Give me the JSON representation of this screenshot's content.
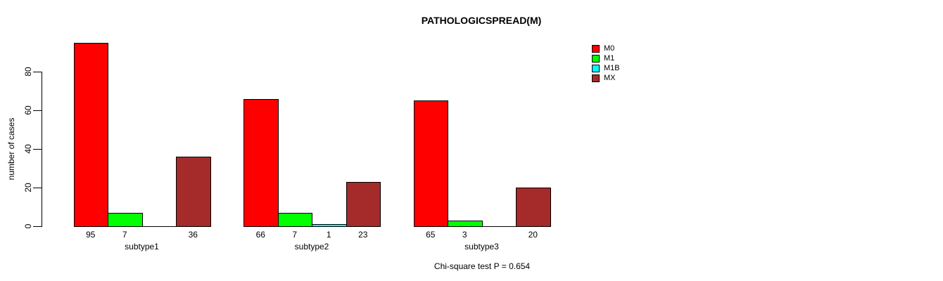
{
  "title": "PATHOLOGICSPREAD(M)",
  "footer": {
    "annotation": "Chi-square test P = 0.654"
  },
  "y_axis": {
    "label": "number of cases"
  },
  "legend": {
    "items": [
      {
        "label": "M0",
        "color": "#FF0000"
      },
      {
        "label": "M1",
        "color": "#00FF00"
      },
      {
        "label": "M1B",
        "color": "#00FFFF"
      },
      {
        "label": "MX",
        "color": "#A52A2A"
      }
    ]
  },
  "chart_data": {
    "type": "bar",
    "title": "PATHOLOGICSPREAD(M)",
    "categories": [
      "subtype1",
      "subtype2",
      "subtype3"
    ],
    "series": [
      {
        "name": "M0",
        "color": "#FF0000",
        "values": [
          95,
          66,
          65
        ]
      },
      {
        "name": "M1",
        "color": "#00FF00",
        "values": [
          7,
          7,
          3
        ]
      },
      {
        "name": "M1B",
        "color": "#00FFFF",
        "values": [
          0,
          1,
          0
        ]
      },
      {
        "name": "MX",
        "color": "#A52A2A",
        "values": [
          36,
          23,
          20
        ]
      }
    ],
    "bar_value_labels": [
      [
        "95",
        "7",
        "",
        "36"
      ],
      [
        "66",
        "7",
        "1",
        "23"
      ],
      [
        "65",
        "3",
        "",
        "20"
      ]
    ],
    "xlabel": "",
    "ylabel": "number of cases",
    "ylim": [
      0,
      80
    ],
    "yticks": [
      0,
      20,
      40,
      60,
      80
    ],
    "grid": false,
    "legend_position": "right",
    "annotation": "Chi-square test P = 0.654",
    "notes": "grouped (beside) bar chart; zero-value bars drawn as baseline line with no value label"
  }
}
